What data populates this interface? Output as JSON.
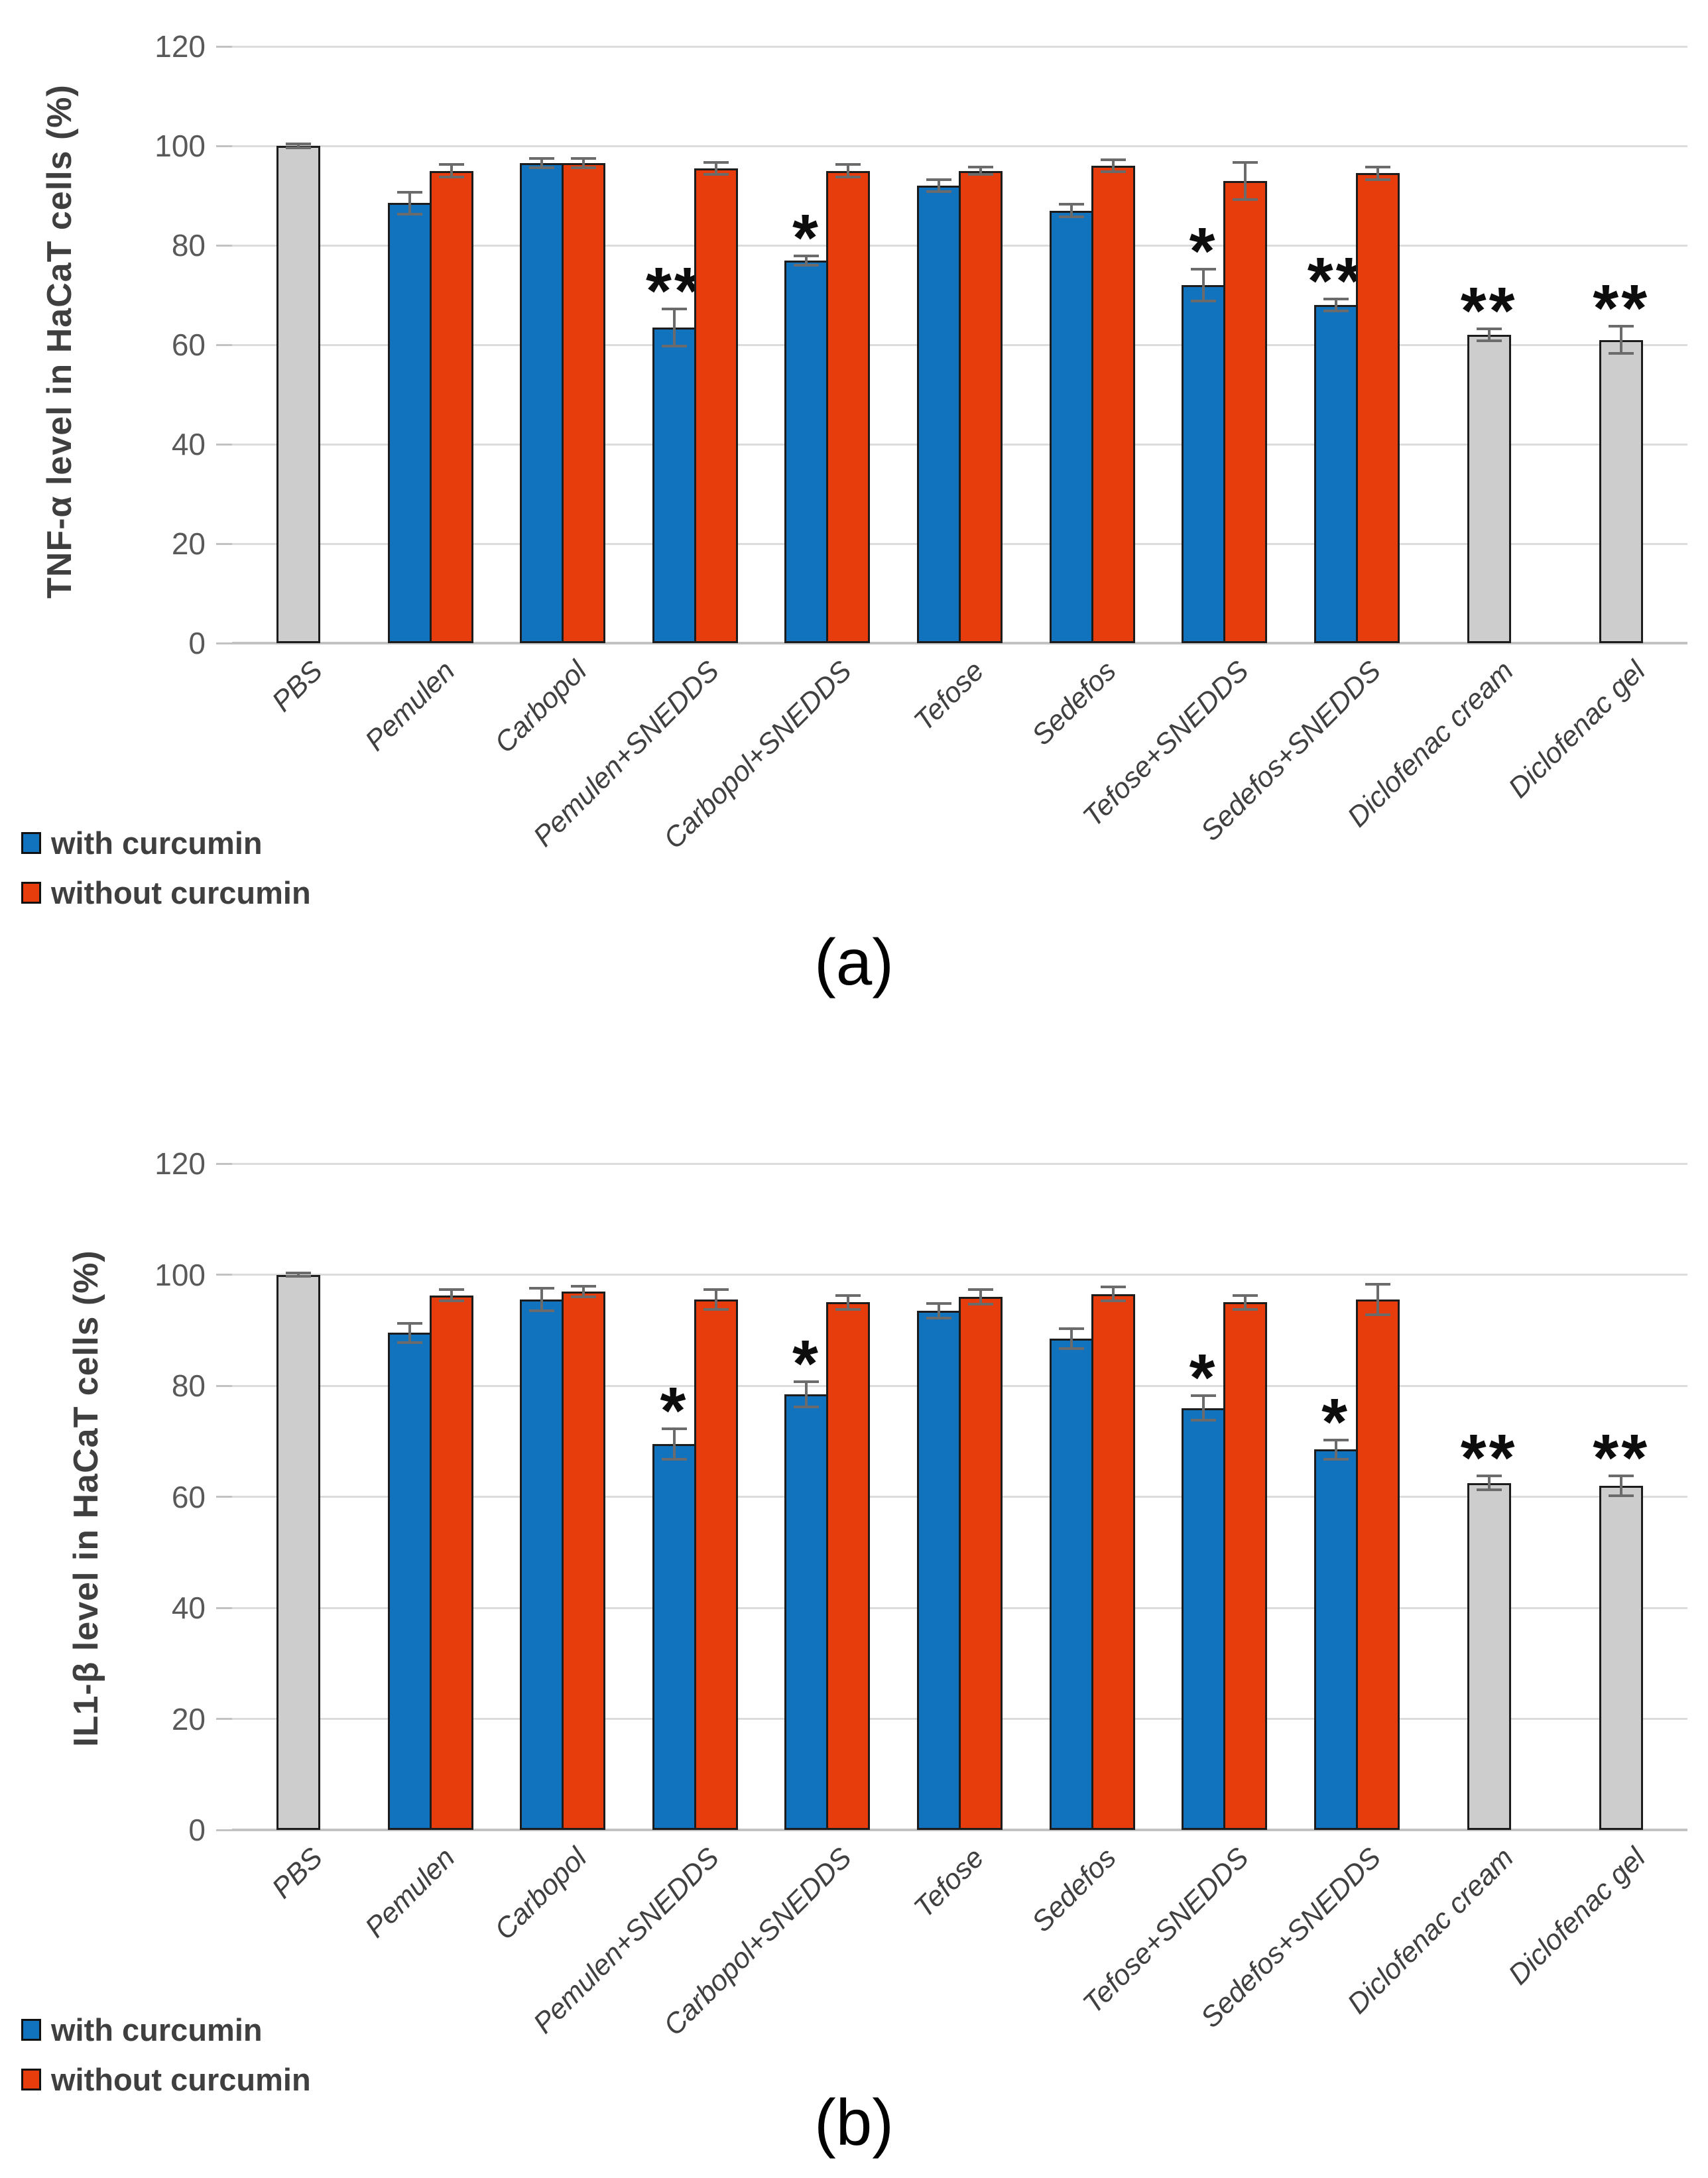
{
  "colors": {
    "with_curcumin": "#1173BD",
    "without_curcumin": "#E73C0C",
    "control_bar_fill": "#CDCDCD",
    "bar_border": "#1C1C1C",
    "error_bar": "#6B6B6B",
    "gridline": "#DCDCDC",
    "axis_tick_text": "#595959",
    "category_text": "#404040",
    "title_text": "#3F3F3F"
  },
  "chart_data": [
    {
      "type": "bar",
      "panel_label": "(a)",
      "title": "",
      "xlabel": "",
      "ylabel": "TNF-α level in HaCaT cells (%)",
      "ylim": [
        0,
        120
      ],
      "yticks": [
        0,
        20,
        40,
        60,
        80,
        100,
        120
      ],
      "grid": true,
      "legend_position": "bottom-left",
      "series_colors": {
        "with curcumin": "#1173BD",
        "without curcumin": "#E73C0C",
        "control": "#CDCDCD"
      },
      "legend": [
        {
          "label": "with curcumin",
          "series": "with curcumin",
          "color": "#1173BD"
        },
        {
          "label": "without curcumin",
          "series": "without curcumin",
          "color": "#E73C0C"
        }
      ],
      "categories": [
        "PBS",
        "Pemulen",
        "Carbopol",
        "Pemulen+SNEDDS",
        "Carbopol+SNEDDS",
        "Tefose",
        "Sedefos",
        "Tefose+SNEDDS",
        "Sedefos+SNEDDS",
        "Diclofenac cream",
        "Diclofenac gel"
      ],
      "groups": [
        {
          "category": "PBS",
          "bars": [
            {
              "series": "control",
              "value": 100,
              "error": 0.7,
              "annotation": ""
            }
          ]
        },
        {
          "category": "Pemulen",
          "bars": [
            {
              "series": "with curcumin",
              "value": 88.5,
              "error": 2.5,
              "annotation": ""
            },
            {
              "series": "without curcumin",
              "value": 95,
              "error": 1.5,
              "annotation": ""
            }
          ]
        },
        {
          "category": "Carbopol",
          "bars": [
            {
              "series": "with curcumin",
              "value": 96.5,
              "error": 1.2,
              "annotation": ""
            },
            {
              "series": "without curcumin",
              "value": 96.5,
              "error": 1.2,
              "annotation": ""
            }
          ]
        },
        {
          "category": "Pemulen+SNEDDS",
          "bars": [
            {
              "series": "with curcumin",
              "value": 63.5,
              "error": 4,
              "annotation": "**"
            },
            {
              "series": "without curcumin",
              "value": 95.5,
              "error": 1.5,
              "annotation": ""
            }
          ]
        },
        {
          "category": "Carbopol+SNEDDS",
          "bars": [
            {
              "series": "with curcumin",
              "value": 77,
              "error": 1.2,
              "annotation": "*"
            },
            {
              "series": "without curcumin",
              "value": 95,
              "error": 1.5,
              "annotation": ""
            }
          ]
        },
        {
          "category": "Tefose",
          "bars": [
            {
              "series": "with curcumin",
              "value": 92,
              "error": 1.5,
              "annotation": ""
            },
            {
              "series": "without curcumin",
              "value": 95,
              "error": 1,
              "annotation": ""
            }
          ]
        },
        {
          "category": "Sedefos",
          "bars": [
            {
              "series": "with curcumin",
              "value": 87,
              "error": 1.5,
              "annotation": ""
            },
            {
              "series": "without curcumin",
              "value": 96,
              "error": 1.5,
              "annotation": ""
            }
          ]
        },
        {
          "category": "Tefose+SNEDDS",
          "bars": [
            {
              "series": "with curcumin",
              "value": 72,
              "error": 3.5,
              "annotation": "*"
            },
            {
              "series": "without curcumin",
              "value": 93,
              "error": 4,
              "annotation": ""
            }
          ]
        },
        {
          "category": "Sedefos+SNEDDS",
          "bars": [
            {
              "series": "with curcumin",
              "value": 68,
              "error": 1.5,
              "annotation": "**"
            },
            {
              "series": "without curcumin",
              "value": 94.5,
              "error": 1.5,
              "annotation": ""
            }
          ]
        },
        {
          "category": "Diclofenac cream",
          "bars": [
            {
              "series": "control",
              "value": 62,
              "error": 1.5,
              "annotation": "**"
            }
          ]
        },
        {
          "category": "Diclofenac gel",
          "bars": [
            {
              "series": "control",
              "value": 61,
              "error": 3,
              "annotation": "**"
            }
          ]
        }
      ]
    },
    {
      "type": "bar",
      "panel_label": "(b)",
      "title": "",
      "xlabel": "",
      "ylabel": "IL1-β level in HaCaT cells (%)",
      "ylim": [
        0,
        120
      ],
      "yticks": [
        0,
        20,
        40,
        60,
        80,
        100,
        120
      ],
      "grid": true,
      "legend_position": "bottom-left",
      "series_colors": {
        "with curcumin": "#1173BD",
        "without curcumin": "#E73C0C",
        "control": "#CDCDCD"
      },
      "legend": [
        {
          "label": "with curcumin",
          "series": "with curcumin",
          "color": "#1173BD"
        },
        {
          "label": "without curcumin",
          "series": "without curcumin",
          "color": "#E73C0C"
        }
      ],
      "categories": [
        "PBS",
        "Pemulen",
        "Carbopol",
        "Pemulen+SNEDDS",
        "Carbopol+SNEDDS",
        "Tefose",
        "Sedefos",
        "Tefose+SNEDDS",
        "Sedefos+SNEDDS",
        "Diclofenac cream",
        "Diclofenac gel"
      ],
      "groups": [
        {
          "category": "PBS",
          "bars": [
            {
              "series": "control",
              "value": 100,
              "error": 0.5,
              "annotation": ""
            }
          ]
        },
        {
          "category": "Pemulen",
          "bars": [
            {
              "series": "with curcumin",
              "value": 89.5,
              "error": 2,
              "annotation": ""
            },
            {
              "series": "without curcumin",
              "value": 96.3,
              "error": 1.2,
              "annotation": ""
            }
          ]
        },
        {
          "category": "Carbopol",
          "bars": [
            {
              "series": "with curcumin",
              "value": 95.5,
              "error": 2.3,
              "annotation": ""
            },
            {
              "series": "without curcumin",
              "value": 97,
              "error": 1.2,
              "annotation": ""
            }
          ]
        },
        {
          "category": "Pemulen+SNEDDS",
          "bars": [
            {
              "series": "with curcumin",
              "value": 69.5,
              "error": 3,
              "annotation": "*"
            },
            {
              "series": "without curcumin",
              "value": 95.5,
              "error": 2,
              "annotation": ""
            }
          ]
        },
        {
          "category": "Carbopol+SNEDDS",
          "bars": [
            {
              "series": "with curcumin",
              "value": 78.5,
              "error": 2.5,
              "annotation": "*"
            },
            {
              "series": "without curcumin",
              "value": 95,
              "error": 1.5,
              "annotation": ""
            }
          ]
        },
        {
          "category": "Tefose",
          "bars": [
            {
              "series": "with curcumin",
              "value": 93.5,
              "error": 1.5,
              "annotation": ""
            },
            {
              "series": "without curcumin",
              "value": 96,
              "error": 1.5,
              "annotation": ""
            }
          ]
        },
        {
          "category": "Sedefos",
          "bars": [
            {
              "series": "with curcumin",
              "value": 88.5,
              "error": 2,
              "annotation": ""
            },
            {
              "series": "without curcumin",
              "value": 96.5,
              "error": 1.5,
              "annotation": ""
            }
          ]
        },
        {
          "category": "Tefose+SNEDDS",
          "bars": [
            {
              "series": "with curcumin",
              "value": 76,
              "error": 2.5,
              "annotation": "*"
            },
            {
              "series": "without curcumin",
              "value": 95,
              "error": 1.5,
              "annotation": ""
            }
          ]
        },
        {
          "category": "Sedefos+SNEDDS",
          "bars": [
            {
              "series": "with curcumin",
              "value": 68.5,
              "error": 2,
              "annotation": "*"
            },
            {
              "series": "without curcumin",
              "value": 95.5,
              "error": 3,
              "annotation": ""
            }
          ]
        },
        {
          "category": "Diclofenac cream",
          "bars": [
            {
              "series": "control",
              "value": 62.5,
              "error": 1.5,
              "annotation": "**"
            }
          ]
        },
        {
          "category": "Diclofenac gel",
          "bars": [
            {
              "series": "control",
              "value": 62,
              "error": 2,
              "annotation": "**"
            }
          ]
        }
      ]
    }
  ]
}
